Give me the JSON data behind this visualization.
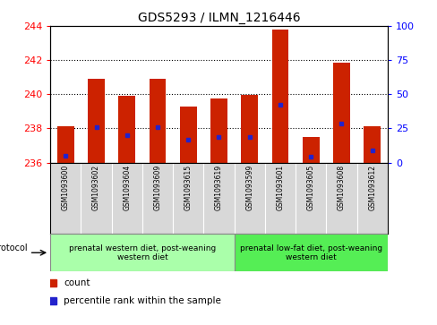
{
  "title": "GDS5293 / ILMN_1216446",
  "samples": [
    "GSM1093600",
    "GSM1093602",
    "GSM1093604",
    "GSM1093609",
    "GSM1093615",
    "GSM1093619",
    "GSM1093599",
    "GSM1093601",
    "GSM1093605",
    "GSM1093608",
    "GSM1093612"
  ],
  "bar_tops": [
    238.1,
    240.9,
    239.9,
    240.9,
    239.3,
    239.75,
    239.95,
    243.8,
    237.5,
    241.85,
    238.1
  ],
  "bar_bottoms": [
    236.0,
    236.0,
    236.0,
    236.0,
    236.0,
    236.0,
    236.0,
    236.0,
    236.0,
    236.0,
    236.0
  ],
  "blue_dots": [
    236.4,
    238.05,
    237.6,
    238.05,
    237.35,
    237.5,
    237.5,
    239.4,
    236.35,
    238.3,
    236.7
  ],
  "bar_color": "#cc2200",
  "dot_color": "#2222cc",
  "ylim_left": [
    236,
    244
  ],
  "ylim_right": [
    0,
    100
  ],
  "yticks_left": [
    236,
    238,
    240,
    242,
    244
  ],
  "yticks_right": [
    0,
    25,
    50,
    75,
    100
  ],
  "group1_label": "prenatal western diet, post-weaning\nwestern diet",
  "group2_label": "prenatal low-fat diet, post-weaning\nwestern diet",
  "group1_indices": [
    0,
    1,
    2,
    3,
    4,
    5
  ],
  "group2_indices": [
    6,
    7,
    8,
    9,
    10
  ],
  "group1_color": "#aaffaa",
  "group2_color": "#55ee55",
  "xtick_bg_color": "#d8d8d8",
  "protocol_label": "protocol",
  "legend_count": "count",
  "legend_percentile": "percentile rank within the sample",
  "bar_width": 0.55
}
